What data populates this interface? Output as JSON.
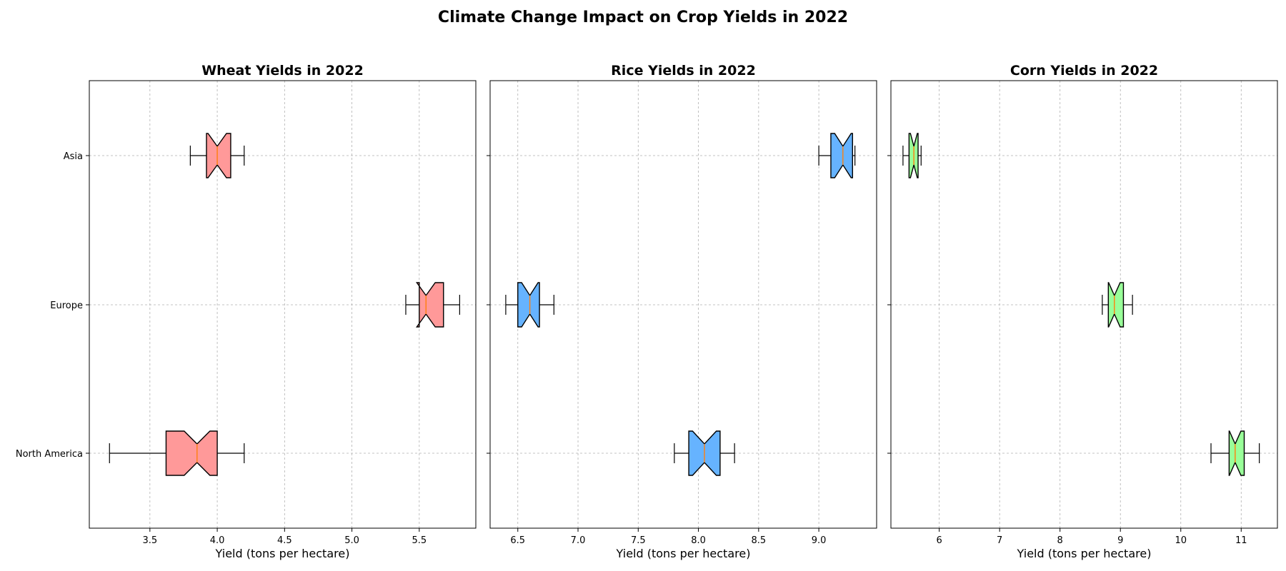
{
  "figure_title": "Climate Change Impact on Crop Yields in 2022",
  "chart_data": [
    {
      "type": "box",
      "orientation": "horizontal",
      "notched": true,
      "title": "Wheat Yields in 2022",
      "xlabel": "Yield (tons per hectare)",
      "ylabel": "",
      "categories": [
        "North America",
        "Europe",
        "Asia"
      ],
      "xlim": [
        3.05,
        5.92
      ],
      "xticks": [
        3.5,
        4.0,
        4.5,
        5.0,
        5.5
      ],
      "xtick_labels": [
        "3.5",
        "4.0",
        "4.5",
        "5.0",
        "5.5"
      ],
      "fill_color": "#ff9999",
      "grid": true,
      "boxes": [
        {
          "category": "North America",
          "min": 3.2,
          "q1": 3.62,
          "median": 3.85,
          "q3": 4.0,
          "max": 4.2
        },
        {
          "category": "Europe",
          "min": 5.4,
          "q1": 5.5,
          "median": 5.55,
          "q3": 5.68,
          "max": 5.8
        },
        {
          "category": "Asia",
          "min": 3.8,
          "q1": 3.92,
          "median": 4.0,
          "q3": 4.1,
          "max": 4.2
        }
      ]
    },
    {
      "type": "box",
      "orientation": "horizontal",
      "notched": true,
      "title": "Rice Yields in 2022",
      "xlabel": "Yield (tons per hectare)",
      "ylabel": "",
      "categories": [
        "North America",
        "Europe",
        "Asia"
      ],
      "xlim": [
        6.27,
        9.48
      ],
      "xticks": [
        6.5,
        7.0,
        7.5,
        8.0,
        8.5,
        9.0
      ],
      "xtick_labels": [
        "6.5",
        "7.0",
        "7.5",
        "8.0",
        "8.5",
        "9.0"
      ],
      "fill_color": "#66b3ff",
      "grid": true,
      "boxes": [
        {
          "category": "North America",
          "min": 7.8,
          "q1": 7.92,
          "median": 8.05,
          "q3": 8.18,
          "max": 8.3
        },
        {
          "category": "Europe",
          "min": 6.4,
          "q1": 6.5,
          "median": 6.6,
          "q3": 6.68,
          "max": 6.8
        },
        {
          "category": "Asia",
          "min": 9.0,
          "q1": 9.1,
          "median": 9.2,
          "q3": 9.28,
          "max": 9.3
        }
      ]
    },
    {
      "type": "box",
      "orientation": "horizontal",
      "notched": true,
      "title": "Corn Yields in 2022",
      "xlabel": "Yield (tons per hectare)",
      "ylabel": "",
      "categories": [
        "North America",
        "Europe",
        "Asia"
      ],
      "xlim": [
        5.2,
        11.6
      ],
      "xticks": [
        6,
        7,
        8,
        9,
        10,
        11
      ],
      "xtick_labels": [
        "6",
        "7",
        "8",
        "9",
        "10",
        "11"
      ],
      "fill_color": "#99ff99",
      "grid": true,
      "boxes": [
        {
          "category": "North America",
          "min": 10.5,
          "q1": 10.8,
          "median": 10.9,
          "q3": 11.05,
          "max": 11.3
        },
        {
          "category": "Europe",
          "min": 8.7,
          "q1": 8.8,
          "median": 8.9,
          "q3": 9.05,
          "max": 9.2
        },
        {
          "category": "Asia",
          "min": 5.4,
          "q1": 5.5,
          "median": 5.58,
          "q3": 5.65,
          "max": 5.7
        }
      ]
    }
  ]
}
